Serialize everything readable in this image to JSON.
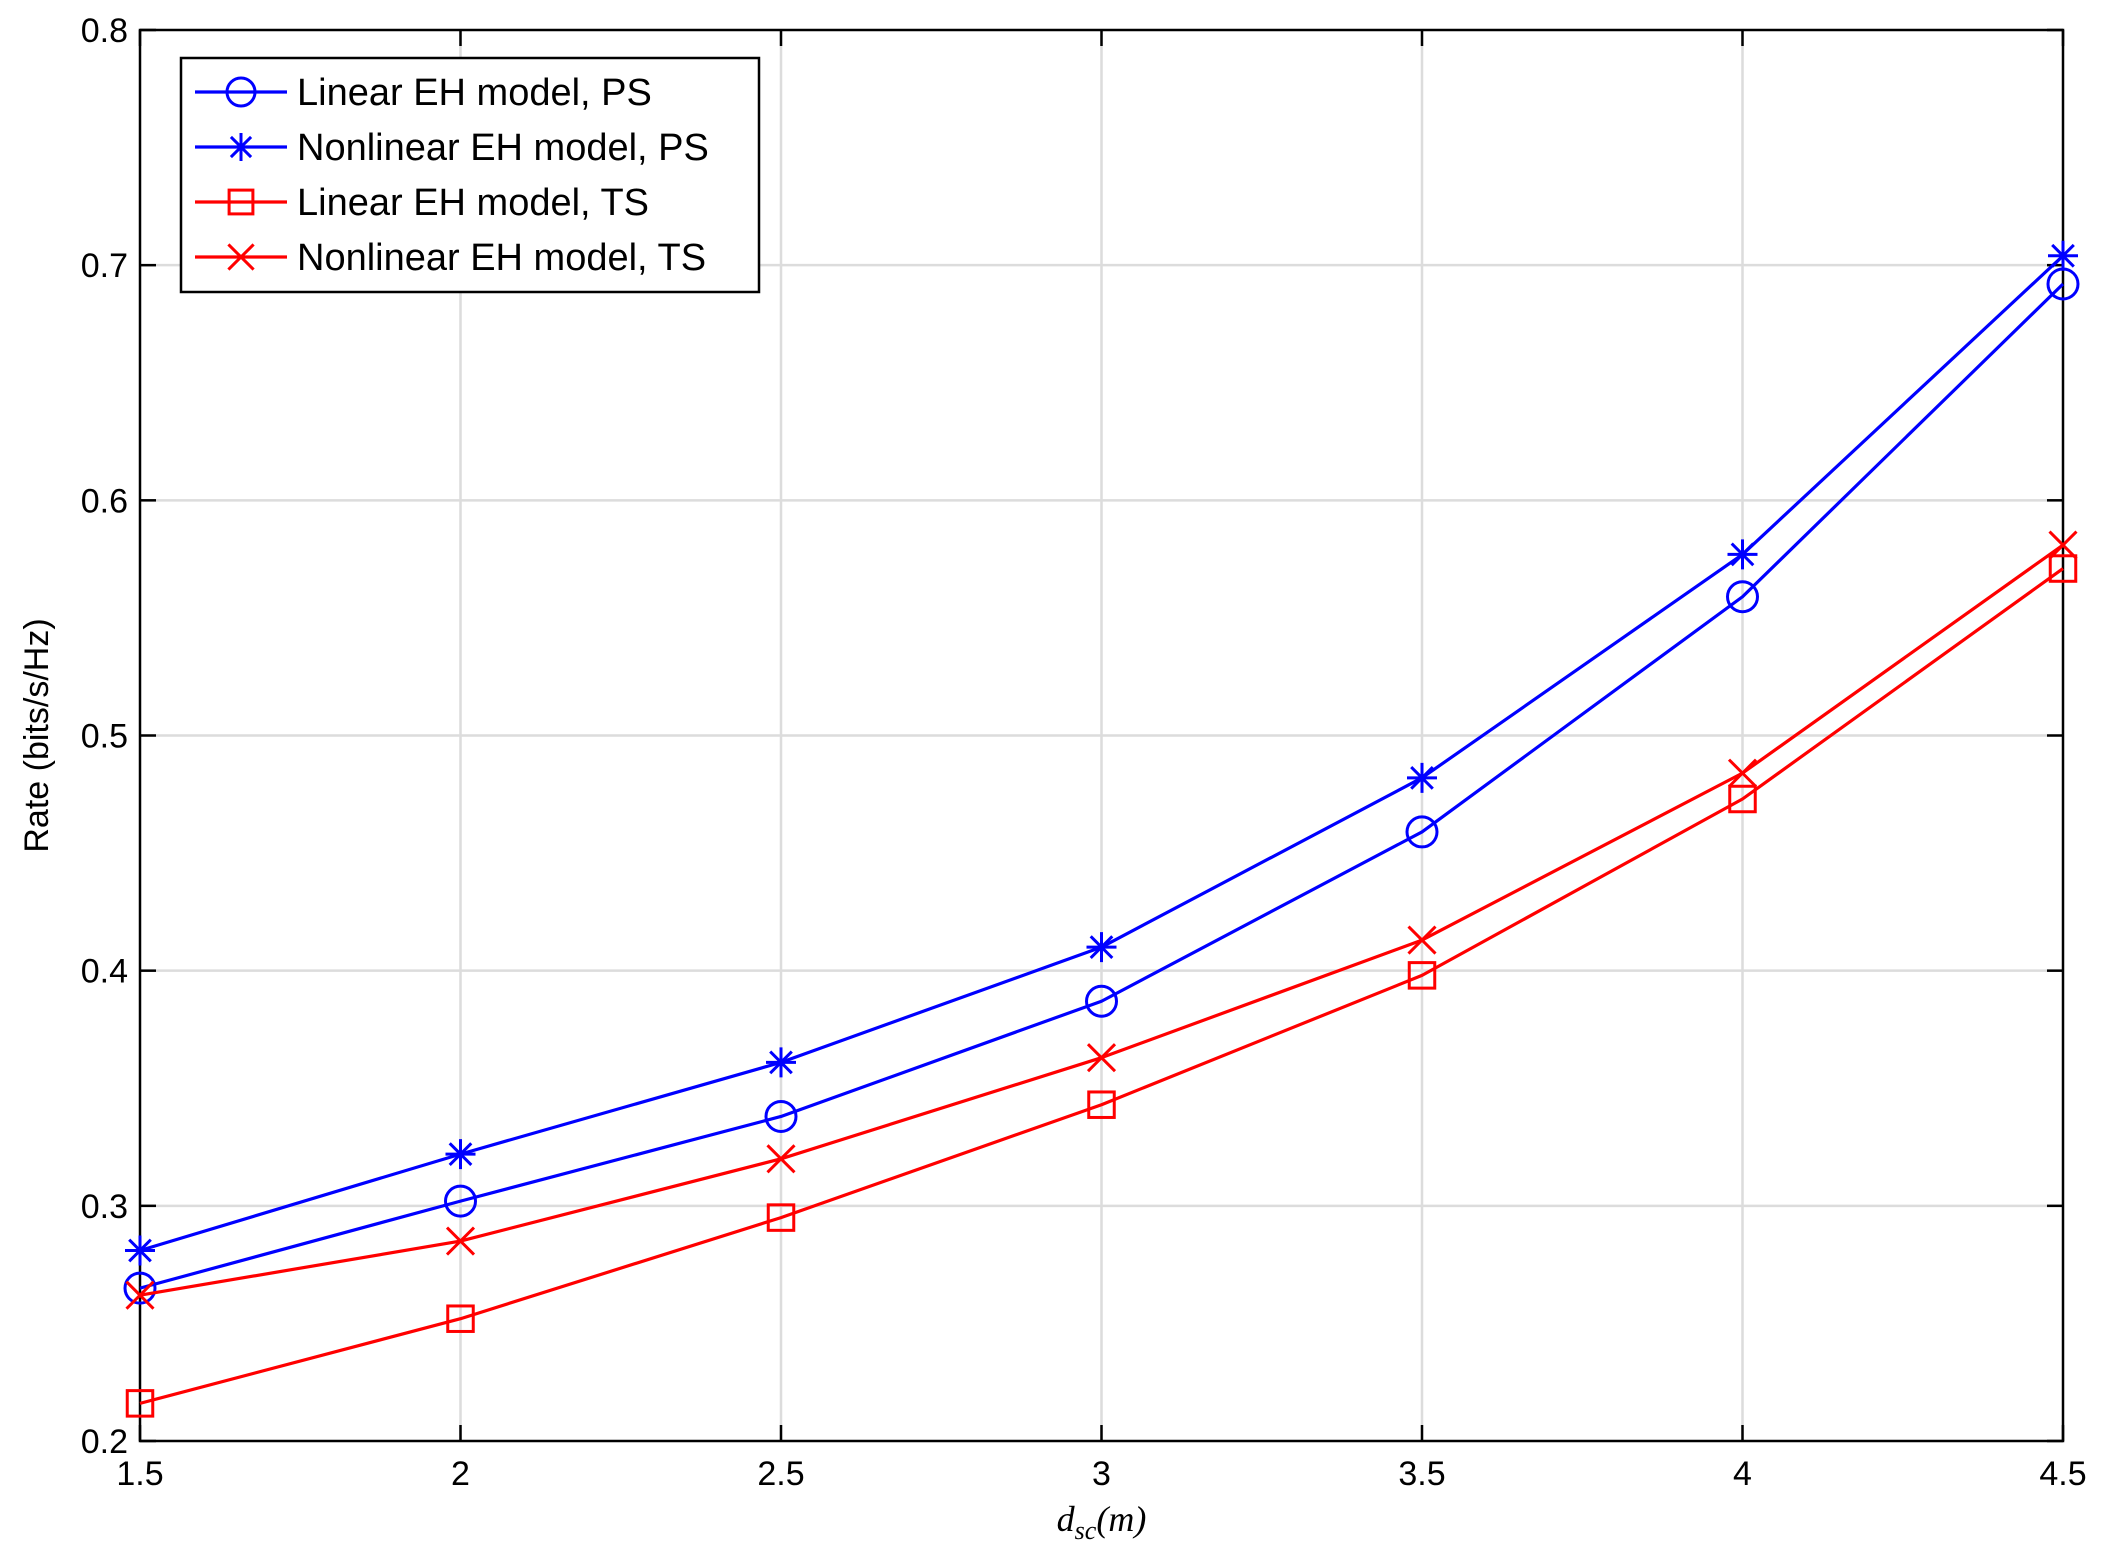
{
  "chart_data": {
    "type": "line",
    "xlabel_main": "d",
    "xlabel_sub": "sc",
    "xlabel_rest": "(m)",
    "ylabel": "Rate (bits/s/Hz)",
    "xlim": [
      1.5,
      4.5
    ],
    "ylim": [
      0.2,
      0.8
    ],
    "xticks": [
      1.5,
      2,
      2.5,
      3,
      3.5,
      4,
      4.5
    ],
    "xtick_labels": [
      "1.5",
      "2",
      "2.5",
      "3",
      "3.5",
      "4",
      "4.5"
    ],
    "yticks": [
      0.2,
      0.3,
      0.4,
      0.5,
      0.6,
      0.7,
      0.8
    ],
    "ytick_labels": [
      "0.2",
      "0.3",
      "0.4",
      "0.5",
      "0.6",
      "0.7",
      "0.8"
    ],
    "grid": true,
    "legend_position": "top-left",
    "x": [
      1.5,
      2,
      2.5,
      3,
      3.5,
      4,
      4.5
    ],
    "series": [
      {
        "name": "Linear EH model, PS",
        "color": "#0000ff",
        "marker": "circle",
        "values": [
          0.265,
          0.302,
          0.338,
          0.387,
          0.459,
          0.559,
          0.692
        ]
      },
      {
        "name": "Nonlinear EH model, PS",
        "color": "#0000ff",
        "marker": "asterisk",
        "values": [
          0.281,
          0.322,
          0.361,
          0.41,
          0.482,
          0.577,
          0.704
        ]
      },
      {
        "name": "Linear EH model, TS",
        "color": "#ff0000",
        "marker": "square",
        "values": [
          0.216,
          0.252,
          0.295,
          0.343,
          0.398,
          0.473,
          0.571
        ]
      },
      {
        "name": "Nonlinear EH model, TS",
        "color": "#ff0000",
        "marker": "x",
        "values": [
          0.262,
          0.285,
          0.32,
          0.363,
          0.413,
          0.484,
          0.581
        ]
      }
    ]
  }
}
